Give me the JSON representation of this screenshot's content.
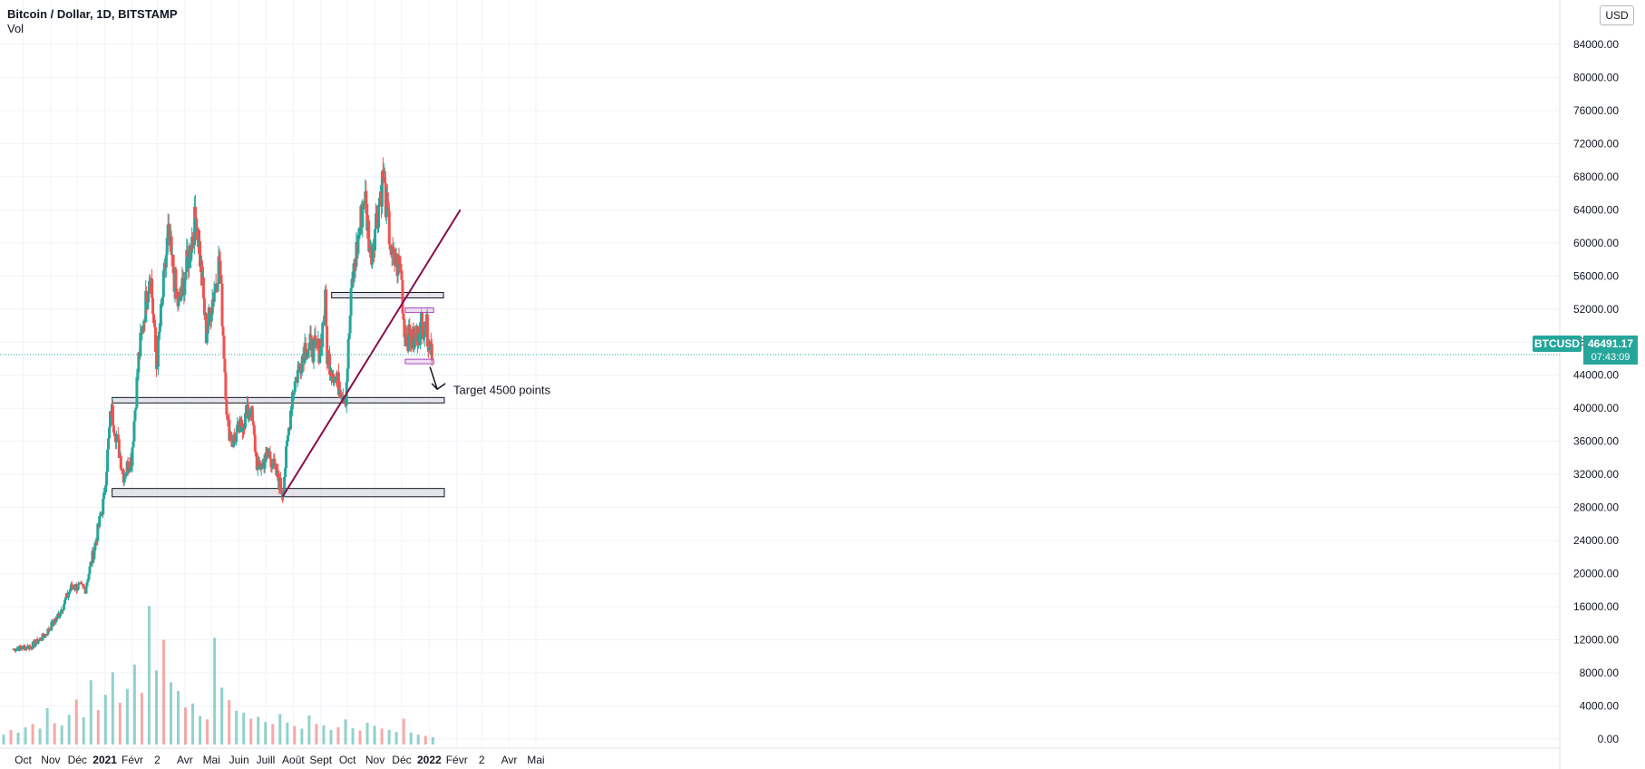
{
  "header": {
    "title": "Bitcoin / Dollar, 1D, BITSTAMP",
    "volume_label": "Vol",
    "currency_button": "USD"
  },
  "last_price": {
    "symbol": "BTCUSD",
    "price": "46491.17",
    "countdown": "07:43:09"
  },
  "colors": {
    "up": "#26a69a",
    "down": "#ef5350",
    "trendline": "#880e4f",
    "zone_fill": "#d1d4dc",
    "range_box": "#ab47bc",
    "price_line": "#26a69a"
  },
  "chart_data": {
    "type": "candlestick",
    "title": "Bitcoin / Dollar, 1D, BITSTAMP",
    "y_ticks": [
      "84000.00",
      "80000.00",
      "76000.00",
      "72000.00",
      "68000.00",
      "64000.00",
      "60000.00",
      "56000.00",
      "52000.00",
      "48000.00",
      "44000.00",
      "40000.00",
      "36000.00",
      "32000.00",
      "28000.00",
      "24000.00",
      "20000.00",
      "16000.00",
      "12000.00",
      "8000.00",
      "4000.00",
      "0.00"
    ],
    "x_ticks": [
      "Oct",
      "Nov",
      "Déc",
      "2021",
      "Févr",
      "2",
      "Avr",
      "Mai",
      "Juin",
      "Juill",
      "Août",
      "Sept",
      "Oct",
      "Nov",
      "Déc",
      "2022",
      "Févr",
      "2",
      "Avr",
      "Mai"
    ],
    "ylim": [
      0,
      86000
    ],
    "grid": true,
    "price_path": [
      {
        "date": "2020-09-20",
        "close": 10900
      },
      {
        "date": "2020-10-10",
        "close": 11200
      },
      {
        "date": "2020-10-25",
        "close": 12500
      },
      {
        "date": "2020-11-10",
        "close": 15000
      },
      {
        "date": "2020-11-25",
        "close": 18500
      },
      {
        "date": "2020-12-10",
        "close": 18200
      },
      {
        "date": "2020-12-20",
        "close": 23000
      },
      {
        "date": "2020-12-31",
        "close": 29000
      },
      {
        "date": "2021-01-08",
        "close": 40000
      },
      {
        "date": "2021-01-22",
        "close": 32000
      },
      {
        "date": "2021-01-31",
        "close": 34000
      },
      {
        "date": "2021-02-08",
        "close": 46000
      },
      {
        "date": "2021-02-21",
        "close": 57000
      },
      {
        "date": "2021-02-28",
        "close": 45000
      },
      {
        "date": "2021-03-13",
        "close": 61000
      },
      {
        "date": "2021-03-25",
        "close": 52000
      },
      {
        "date": "2021-04-14",
        "close": 63500
      },
      {
        "date": "2021-04-25",
        "close": 49000
      },
      {
        "date": "2021-05-10",
        "close": 58000
      },
      {
        "date": "2021-05-19",
        "close": 38000
      },
      {
        "date": "2021-05-25",
        "close": 36000
      },
      {
        "date": "2021-06-14",
        "close": 40000
      },
      {
        "date": "2021-06-22",
        "close": 32500
      },
      {
        "date": "2021-07-05",
        "close": 34500
      },
      {
        "date": "2021-07-20",
        "close": 29800
      },
      {
        "date": "2021-07-31",
        "close": 42000
      },
      {
        "date": "2021-08-14",
        "close": 47500
      },
      {
        "date": "2021-08-31",
        "close": 47000
      },
      {
        "date": "2021-09-06",
        "close": 52700
      },
      {
        "date": "2021-09-08",
        "close": 46500
      },
      {
        "date": "2021-09-20",
        "close": 43000
      },
      {
        "date": "2021-09-29",
        "close": 41500
      },
      {
        "date": "2021-10-06",
        "close": 55000
      },
      {
        "date": "2021-10-20",
        "close": 66000
      },
      {
        "date": "2021-10-27",
        "close": 58500
      },
      {
        "date": "2021-11-10",
        "close": 68000
      },
      {
        "date": "2021-11-20",
        "close": 58000
      },
      {
        "date": "2021-11-30",
        "close": 57000
      },
      {
        "date": "2021-12-04",
        "close": 49000
      },
      {
        "date": "2021-12-14",
        "close": 48000
      },
      {
        "date": "2021-12-27",
        "close": 50500
      },
      {
        "date": "2022-01-05",
        "close": 46491.17
      }
    ],
    "volume_bars": [
      1.5,
      2.2,
      1.8,
      2.6,
      3.1,
      2.4,
      5.5,
      3.2,
      2.9,
      4.5,
      6.8,
      4.1,
      9.7,
      5.2,
      7.5,
      10.9,
      6.3,
      8.4,
      12.1,
      7.8,
      20.9,
      11.2,
      15.8,
      9.4,
      8.1,
      5.6,
      6.2,
      4.3,
      3.8,
      16.1,
      8.6,
      6.7,
      5.1,
      4.8,
      3.9,
      4.2,
      3.4,
      3.1,
      4.6,
      3.3,
      2.8,
      2.4,
      4.4,
      3.1,
      2.9,
      2.2,
      2.6,
      3.8,
      2.5,
      2.1,
      3.3,
      2.8,
      2.4,
      2.2,
      1.9,
      3.9,
      1.8,
      1.5,
      1.3,
      1.1
    ],
    "annotations": [
      {
        "text": "Target 4500 points",
        "type": "text"
      }
    ],
    "support_zones": [
      {
        "low": 40700,
        "high": 41300
      },
      {
        "low": 29300,
        "high": 30300
      },
      {
        "low": 53400,
        "high": 54000
      }
    ],
    "trendline": {
      "from": {
        "date": "2021-07-20",
        "price": 29300
      },
      "to": {
        "date": "2022-02-05",
        "price": 64000
      }
    },
    "range_box": {
      "low": 45600,
      "high": 51800
    }
  }
}
